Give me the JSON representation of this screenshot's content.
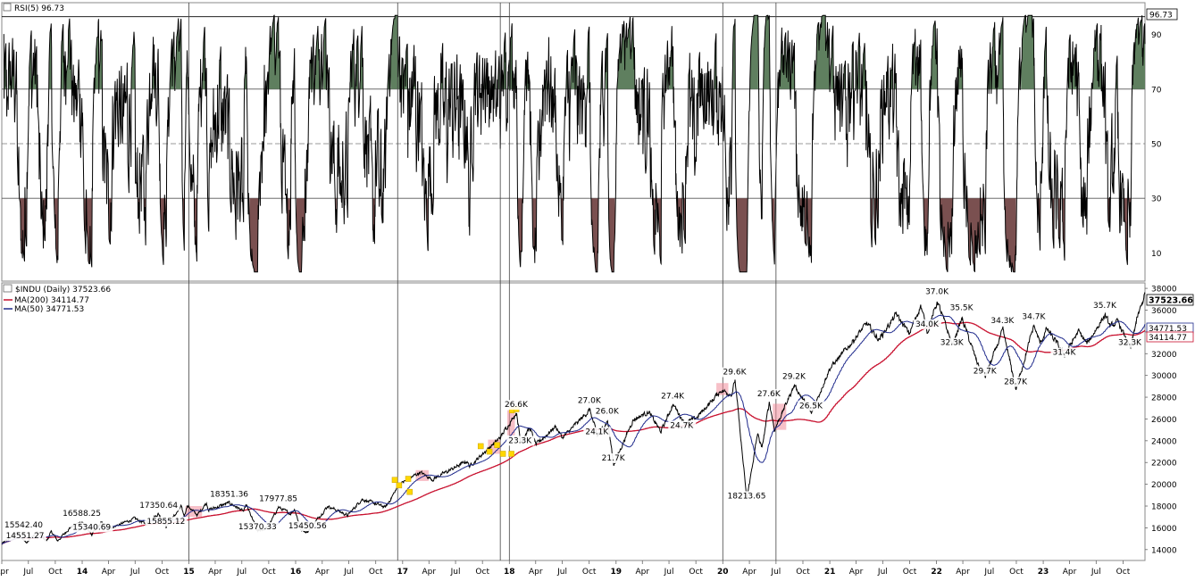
{
  "colors": {
    "price": "#000000",
    "ma200": "#c8102e",
    "ma50": "#1f2a8c",
    "rsi_over": "#5f7f5f",
    "rsi_under": "#7a5050",
    "highlight": "#f08c9a",
    "marker": "#ffd700"
  },
  "chart_data": [
    {
      "type": "line",
      "panel": "rsi",
      "title": "RSI(5) 96.73",
      "last_value": "96.73",
      "ylim": [
        0,
        100
      ],
      "yticks": [
        10,
        30,
        50,
        70,
        90
      ],
      "ytick_labels": [
        "10",
        "30",
        "50",
        "70",
        "90"
      ],
      "overbought": 70,
      "oversold": 30,
      "midline": 50,
      "grid": true
    },
    {
      "type": "line",
      "panel": "price",
      "title": "$INDU (Daily) 37523.66",
      "legend": [
        {
          "name": "MA(200) 34114.77",
          "color": "#c8102e"
        },
        {
          "name": "MA(50) 34771.53",
          "color": "#1f2a8c"
        }
      ],
      "legend_placement": "top-left",
      "last_price": "37523.66",
      "last_ma50": "34771.53",
      "last_ma200": "34114.77",
      "ylim": [
        13000,
        38500
      ],
      "yticks": [
        14000,
        16000,
        18000,
        20000,
        22000,
        24000,
        26000,
        28000,
        30000,
        32000,
        34000,
        36000,
        38000
      ],
      "ytick_labels": [
        "14000",
        "16000",
        "18000",
        "20000",
        "22000",
        "24000",
        "26000",
        "28000",
        "30000",
        "32000",
        "34000",
        "36000",
        "38000"
      ],
      "xlim": [
        "2013-04-01",
        "2023-12-15"
      ],
      "x_ticks": [
        {
          "date": "2013-04-01",
          "label": "Apr"
        },
        {
          "date": "2013-07-01",
          "label": "Jul"
        },
        {
          "date": "2013-10-01",
          "label": "Oct"
        },
        {
          "date": "2014-01-01",
          "label": "14"
        },
        {
          "date": "2014-04-01",
          "label": "Apr"
        },
        {
          "date": "2014-07-01",
          "label": "Jul"
        },
        {
          "date": "2014-10-01",
          "label": "Oct"
        },
        {
          "date": "2015-01-01",
          "label": "15"
        },
        {
          "date": "2015-04-01",
          "label": "Apr"
        },
        {
          "date": "2015-07-01",
          "label": "Jul"
        },
        {
          "date": "2015-10-01",
          "label": "Oct"
        },
        {
          "date": "2016-01-01",
          "label": "16"
        },
        {
          "date": "2016-04-01",
          "label": "Apr"
        },
        {
          "date": "2016-07-01",
          "label": "Jul"
        },
        {
          "date": "2016-10-01",
          "label": "Oct"
        },
        {
          "date": "2017-01-01",
          "label": "17"
        },
        {
          "date": "2017-04-01",
          "label": "Apr"
        },
        {
          "date": "2017-07-01",
          "label": "Jul"
        },
        {
          "date": "2017-10-01",
          "label": "Oct"
        },
        {
          "date": "2018-01-01",
          "label": "18"
        },
        {
          "date": "2018-04-01",
          "label": "Apr"
        },
        {
          "date": "2018-07-01",
          "label": "Jul"
        },
        {
          "date": "2018-10-01",
          "label": "Oct"
        },
        {
          "date": "2019-01-01",
          "label": "19"
        },
        {
          "date": "2019-04-01",
          "label": "Apr"
        },
        {
          "date": "2019-07-01",
          "label": "Jul"
        },
        {
          "date": "2019-10-01",
          "label": "Oct"
        },
        {
          "date": "2020-01-01",
          "label": "20"
        },
        {
          "date": "2020-04-01",
          "label": "Apr"
        },
        {
          "date": "2020-07-01",
          "label": "Jul"
        },
        {
          "date": "2020-10-01",
          "label": "Oct"
        },
        {
          "date": "2021-01-01",
          "label": "21"
        },
        {
          "date": "2021-04-01",
          "label": "Apr"
        },
        {
          "date": "2021-07-01",
          "label": "Jul"
        },
        {
          "date": "2021-10-01",
          "label": "Oct"
        },
        {
          "date": "2022-01-01",
          "label": "22"
        },
        {
          "date": "2022-04-01",
          "label": "Apr"
        },
        {
          "date": "2022-07-01",
          "label": "Jul"
        },
        {
          "date": "2022-10-01",
          "label": "Oct"
        },
        {
          "date": "2023-01-01",
          "label": "23"
        },
        {
          "date": "2023-04-01",
          "label": "Apr"
        },
        {
          "date": "2023-07-01",
          "label": "Jul"
        },
        {
          "date": "2023-10-01",
          "label": "Oct"
        }
      ],
      "vertical_markers": [
        "2015-01-01",
        "2016-12-15",
        "2017-12-01",
        "2018-01-01",
        "2020-01-01",
        "2020-07-01"
      ],
      "highlights": [
        {
          "start": "2014-12-20",
          "end": "2015-02-15",
          "low": 17000,
          "high": 18000
        },
        {
          "start": "2017-02-15",
          "end": "2017-03-31",
          "low": 20300,
          "high": 21300
        },
        {
          "start": "2017-10-20",
          "end": "2017-12-01",
          "low": 22800,
          "high": 24100
        },
        {
          "start": "2017-12-25",
          "end": "2018-01-20",
          "low": 24500,
          "high": 26800
        },
        {
          "start": "2019-12-10",
          "end": "2020-01-20",
          "low": 28200,
          "high": 29300
        },
        {
          "start": "2020-06-20",
          "end": "2020-08-05",
          "low": 25000,
          "high": 27400
        }
      ],
      "markers": [
        {
          "date": "2016-12-05",
          "value": 20400
        },
        {
          "date": "2016-12-20",
          "value": 19900
        },
        {
          "date": "2017-01-20",
          "value": 20500
        },
        {
          "date": "2017-01-25",
          "value": 19300
        },
        {
          "date": "2017-09-25",
          "value": 23500
        },
        {
          "date": "2017-10-25",
          "value": 23000
        },
        {
          "date": "2017-11-20",
          "value": 23600
        },
        {
          "date": "2017-12-10",
          "value": 22800
        },
        {
          "date": "2018-01-10",
          "value": 26800
        },
        {
          "date": "2018-01-25",
          "value": 26900
        },
        {
          "date": "2018-01-08",
          "value": 22800
        }
      ],
      "annotations": [
        {
          "text": "15542.40",
          "date": "2013-05-15",
          "value": 15542.4
        },
        {
          "text": "14551.27",
          "date": "2013-06-20",
          "value": 14551.27
        },
        {
          "text": "16588.25",
          "date": "2013-12-31",
          "value": 16588.25
        },
        {
          "text": "15340.69",
          "date": "2014-02-03",
          "value": 15340.69
        },
        {
          "text": "17350.64",
          "date": "2014-09-20",
          "value": 17350.64
        },
        {
          "text": "15855.12",
          "date": "2014-10-15",
          "value": 15855.12
        },
        {
          "text": "18351.36",
          "date": "2015-05-19",
          "value": 18351.36
        },
        {
          "text": "15370.33",
          "date": "2015-08-24",
          "value": 15370.33
        },
        {
          "text": "17977.85",
          "date": "2015-11-03",
          "value": 17977.85
        },
        {
          "text": "15450.56",
          "date": "2016-02-11",
          "value": 15450.56
        },
        {
          "text": "26.6K",
          "date": "2018-01-26",
          "value": 26600
        },
        {
          "text": "23.3K",
          "date": "2018-02-08",
          "value": 23300
        },
        {
          "text": "27.0K",
          "date": "2018-10-03",
          "value": 27000
        },
        {
          "text": "26.0K",
          "date": "2018-12-03",
          "value": 26000
        },
        {
          "text": "24.1K",
          "date": "2018-10-29",
          "value": 24100
        },
        {
          "text": "21.7K",
          "date": "2018-12-24",
          "value": 21700
        },
        {
          "text": "27.4K",
          "date": "2019-07-15",
          "value": 27400
        },
        {
          "text": "24.7K",
          "date": "2019-08-15",
          "value": 24700
        },
        {
          "text": "29.6K",
          "date": "2020-02-12",
          "value": 29600
        },
        {
          "text": "18213.65",
          "date": "2020-03-23",
          "value": 18213.65
        },
        {
          "text": "27.6K",
          "date": "2020-06-08",
          "value": 27600
        },
        {
          "text": "29.2K",
          "date": "2020-09-02",
          "value": 29200
        },
        {
          "text": "26.5K",
          "date": "2020-10-30",
          "value": 26500
        },
        {
          "text": "37.0K",
          "date": "2022-01-04",
          "value": 37000
        },
        {
          "text": "34.0K",
          "date": "2021-12-01",
          "value": 34000
        },
        {
          "text": "32.3K",
          "date": "2022-02-24",
          "value": 32300
        },
        {
          "text": "35.5K",
          "date": "2022-03-29",
          "value": 35500
        },
        {
          "text": "29.7K",
          "date": "2022-06-17",
          "value": 29700
        },
        {
          "text": "34.3K",
          "date": "2022-08-16",
          "value": 34300
        },
        {
          "text": "28.7K",
          "date": "2022-09-30",
          "value": 28700
        },
        {
          "text": "34.7K",
          "date": "2022-12-01",
          "value": 34700
        },
        {
          "text": "31.4K",
          "date": "2023-03-15",
          "value": 31400
        },
        {
          "text": "35.7K",
          "date": "2023-08-01",
          "value": 35700
        },
        {
          "text": "32.3K",
          "date": "2023-10-27",
          "value": 32300
        }
      ],
      "price_anchors": [
        [
          "2013-04-01",
          14500
        ],
        [
          "2013-05-20",
          15500
        ],
        [
          "2013-06-24",
          14700
        ],
        [
          "2013-08-01",
          15600
        ],
        [
          "2013-09-01",
          14800
        ],
        [
          "2013-09-18",
          15650
        ],
        [
          "2013-10-09",
          14800
        ],
        [
          "2013-11-20",
          16000
        ],
        [
          "2013-12-31",
          16580
        ],
        [
          "2014-02-03",
          15370
        ],
        [
          "2014-03-07",
          16450
        ],
        [
          "2014-04-11",
          16030
        ],
        [
          "2014-06-30",
          16850
        ],
        [
          "2014-08-07",
          16370
        ],
        [
          "2014-09-19",
          17300
        ],
        [
          "2014-10-15",
          16100
        ],
        [
          "2014-12-05",
          17900
        ],
        [
          "2014-12-16",
          17100
        ],
        [
          "2014-12-26",
          18050
        ],
        [
          "2015-01-30",
          17170
        ],
        [
          "2015-03-02",
          18300
        ],
        [
          "2015-03-10",
          17650
        ],
        [
          "2015-05-19",
          18300
        ],
        [
          "2015-07-08",
          17500
        ],
        [
          "2015-07-16",
          18100
        ],
        [
          "2015-08-24",
          15700
        ],
        [
          "2015-09-28",
          16000
        ],
        [
          "2015-11-03",
          17900
        ],
        [
          "2015-12-14",
          17300
        ],
        [
          "2015-12-29",
          17720
        ],
        [
          "2016-01-20",
          15750
        ],
        [
          "2016-02-11",
          15660
        ],
        [
          "2016-04-20",
          18000
        ],
        [
          "2016-06-27",
          17140
        ],
        [
          "2016-08-15",
          18630
        ],
        [
          "2016-11-04",
          17890
        ],
        [
          "2016-12-20",
          19970
        ],
        [
          "2017-03-01",
          21110
        ],
        [
          "2017-04-13",
          20450
        ],
        [
          "2017-08-08",
          22120
        ],
        [
          "2017-08-18",
          21670
        ],
        [
          "2017-11-30",
          24270
        ],
        [
          "2018-01-26",
          26610
        ],
        [
          "2018-02-08",
          23860
        ],
        [
          "2018-03-12",
          25180
        ],
        [
          "2018-04-02",
          23640
        ],
        [
          "2018-06-08",
          25320
        ],
        [
          "2018-07-02",
          24270
        ],
        [
          "2018-10-03",
          26830
        ],
        [
          "2018-10-29",
          24440
        ],
        [
          "2018-12-03",
          25830
        ],
        [
          "2018-12-24",
          21790
        ],
        [
          "2019-02-28",
          25920
        ],
        [
          "2019-04-23",
          26660
        ],
        [
          "2019-06-03",
          24820
        ],
        [
          "2019-07-15",
          27360
        ],
        [
          "2019-08-23",
          25630
        ],
        [
          "2019-10-02",
          26080
        ],
        [
          "2019-12-27",
          28650
        ],
        [
          "2020-01-31",
          28260
        ],
        [
          "2020-02-12",
          29550
        ],
        [
          "2020-03-23",
          18600
        ],
        [
          "2020-04-29",
          24630
        ],
        [
          "2020-05-14",
          23250
        ],
        [
          "2020-06-08",
          27570
        ],
        [
          "2020-06-26",
          25020
        ],
        [
          "2020-09-02",
          29100
        ],
        [
          "2020-10-30",
          26500
        ],
        [
          "2020-12-31",
          30600
        ],
        [
          "2021-03-15",
          32950
        ],
        [
          "2021-05-07",
          34770
        ],
        [
          "2021-06-18",
          33290
        ],
        [
          "2021-08-16",
          35620
        ],
        [
          "2021-09-30",
          33840
        ],
        [
          "2021-11-08",
          36430
        ],
        [
          "2021-12-01",
          34020
        ],
        [
          "2022-01-04",
          36800
        ],
        [
          "2022-02-24",
          32800
        ],
        [
          "2022-03-29",
          35230
        ],
        [
          "2022-05-19",
          31250
        ],
        [
          "2022-06-17",
          29890
        ],
        [
          "2022-08-16",
          34150
        ],
        [
          "2022-09-30",
          28730
        ],
        [
          "2022-11-30",
          34590
        ],
        [
          "2022-12-22",
          32900
        ],
        [
          "2023-01-13",
          34300
        ],
        [
          "2023-03-15",
          31870
        ],
        [
          "2023-05-01",
          34050
        ],
        [
          "2023-05-31",
          32900
        ],
        [
          "2023-07-31",
          35560
        ],
        [
          "2023-08-18",
          34500
        ],
        [
          "2023-09-14",
          34900
        ],
        [
          "2023-10-27",
          32400
        ],
        [
          "2023-11-14",
          34830
        ],
        [
          "2023-12-15",
          37520
        ]
      ]
    }
  ]
}
